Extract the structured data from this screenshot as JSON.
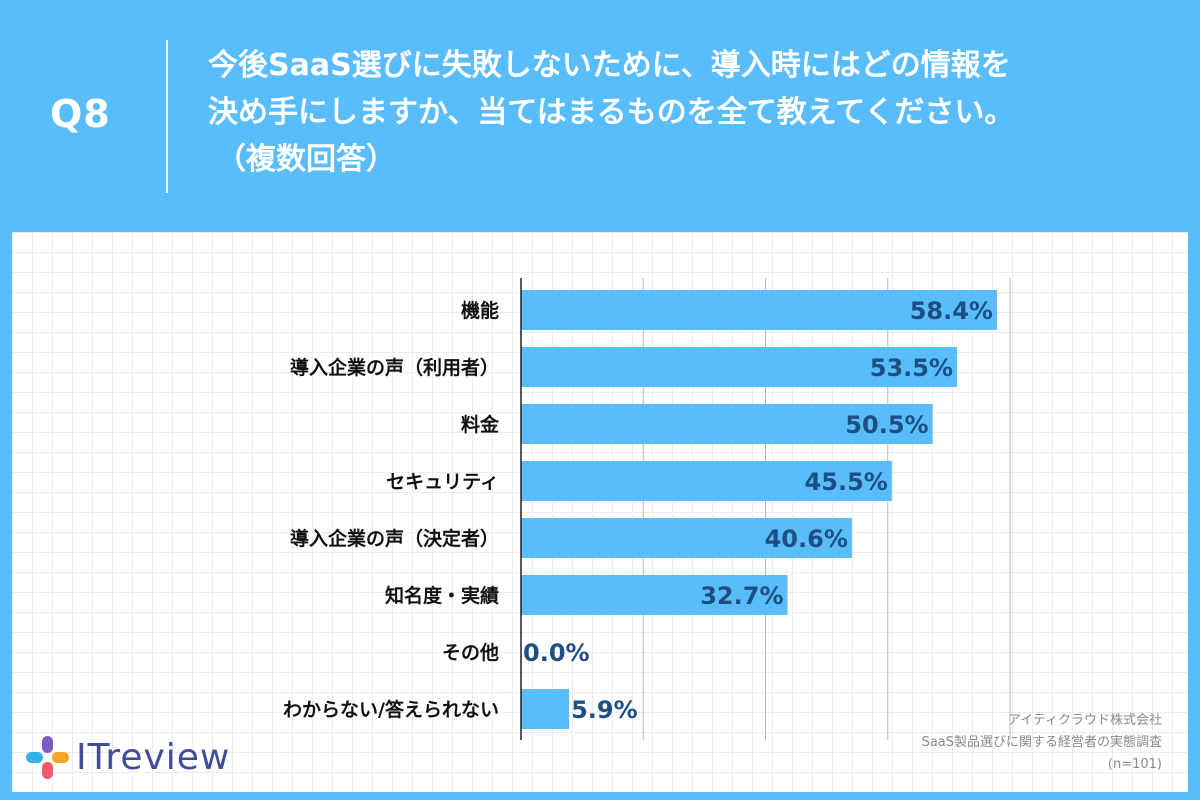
{
  "header": {
    "qnum": "Q8",
    "question_lines": [
      "今後SaaS選びに失敗しないために、導入時にはどの情報を",
      "決め手にしますか、当てはまるものを全て教えてください。",
      "（複数回答）"
    ]
  },
  "brand": {
    "logo_text": "ITreview"
  },
  "source": {
    "company": "アイティクラウド株式会社",
    "survey": "SaaS製品選びに関する経営者の実態調査",
    "sample": "(n=101)"
  },
  "colors": {
    "background": "#59bdfb",
    "bar": "#59bdfb",
    "value_text": "#1d4f84",
    "category_text": "#111111"
  },
  "chart_data": {
    "type": "bar",
    "orientation": "horizontal",
    "categories": [
      "機能",
      "導入企業の声（利用者）",
      "料金",
      "セキュリティ",
      "導入企業の声（決定者）",
      "知名度・実績",
      "その他",
      "わからない/答えられない"
    ],
    "values": [
      58.4,
      53.5,
      50.5,
      45.5,
      40.6,
      32.7,
      0.0,
      5.9
    ],
    "value_labels": [
      "58.4%",
      "53.5%",
      "50.5%",
      "45.5%",
      "40.6%",
      "32.7%",
      "0.0%",
      "5.9%"
    ],
    "unit": "%",
    "xlim": [
      0,
      80
    ],
    "grid": true
  }
}
